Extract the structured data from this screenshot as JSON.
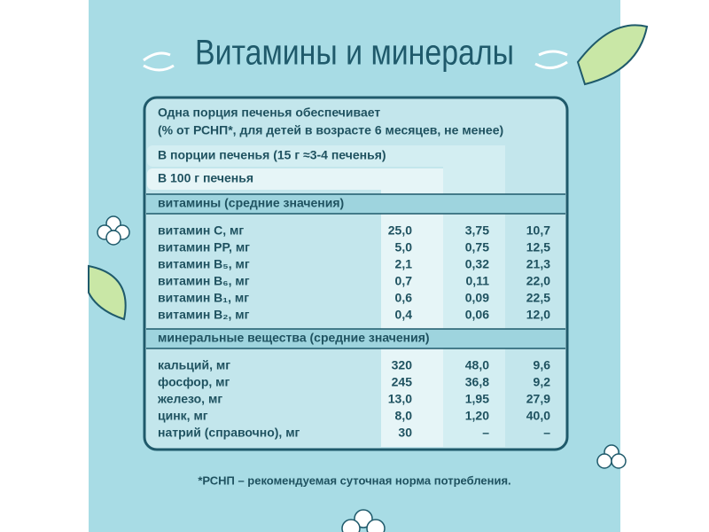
{
  "title": "Витамины и минералы",
  "table": {
    "header": [
      "Одна порция печенья обеспечивает",
      "(% от РСНП*, для детей в возрасте 6 месяцев, не менее)",
      "В порции печенья (15 г ≈3-4 печенья)",
      "В 100 г печенья"
    ],
    "sections": [
      {
        "title": "витамины (средние значения)",
        "rows": [
          [
            "витамин C, мг",
            "25,0",
            "3,75",
            "10,7"
          ],
          [
            "витамин PP, мг",
            "5,0",
            "0,75",
            "12,5"
          ],
          [
            "витамин B₅, мг",
            "2,1",
            "0,32",
            "21,3"
          ],
          [
            "витамин B₆, мг",
            "0,7",
            "0,11",
            "22,0"
          ],
          [
            "витамин B₁, мг",
            "0,6",
            "0,09",
            "22,5"
          ],
          [
            "витамин B₂, мг",
            "0,4",
            "0,06",
            "12,0"
          ]
        ]
      },
      {
        "title": "минеральные вещества (средние значения)",
        "rows": [
          [
            "кальций, мг",
            "320",
            "48,0",
            "9,6"
          ],
          [
            "фосфор, мг",
            "245",
            "36,8",
            "9,2"
          ],
          [
            "железо, мг",
            "13,0",
            "1,95",
            "27,9"
          ],
          [
            "цинк, мг",
            "8,0",
            "1,20",
            "40,0"
          ],
          [
            "натрий (справочно), мг",
            "30",
            "–",
            "–"
          ]
        ]
      }
    ]
  },
  "footnote": "*РСНП – рекомендуемая суточная норма потребления."
}
